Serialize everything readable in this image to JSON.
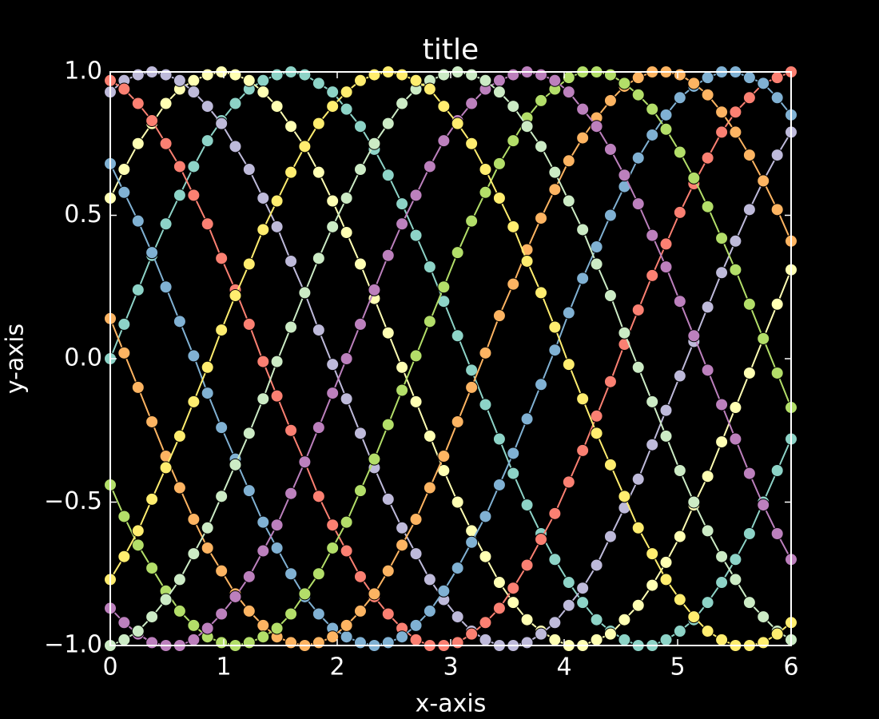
{
  "chart_data": {
    "type": "line",
    "title": "title",
    "x_label": "x-axis",
    "y_label": "y-axis",
    "x": [
      0,
      0.122,
      0.245,
      0.367,
      0.49,
      0.612,
      0.735,
      0.857,
      0.98,
      1.102,
      1.224,
      1.347,
      1.469,
      1.592,
      1.714,
      1.837,
      1.959,
      2.082,
      2.204,
      2.327,
      2.449,
      2.571,
      2.694,
      2.816,
      2.939,
      3.061,
      3.184,
      3.306,
      3.429,
      3.551,
      3.673,
      3.796,
      3.918,
      4.041,
      4.163,
      4.286,
      4.408,
      4.531,
      4.653,
      4.776,
      4.898,
      5.02,
      5.143,
      5.265,
      5.388,
      5.51,
      5.633,
      5.755,
      5.878,
      6
    ],
    "series": [
      {
        "color": "#8dd3c7",
        "values": [
          0,
          0.12,
          0.24,
          0.36,
          0.47,
          0.57,
          0.67,
          0.76,
          0.83,
          0.89,
          0.94,
          0.97,
          0.99,
          1.0,
          0.99,
          0.96,
          0.93,
          0.87,
          0.81,
          0.73,
          0.64,
          0.54,
          0.43,
          0.32,
          0.2,
          0.08,
          -0.04,
          -0.16,
          -0.28,
          -0.4,
          -0.51,
          -0.61,
          -0.7,
          -0.78,
          -0.85,
          -0.91,
          -0.95,
          -0.98,
          -1.0,
          -1.0,
          -0.98,
          -0.95,
          -0.91,
          -0.85,
          -0.78,
          -0.7,
          -0.61,
          -0.5,
          -0.39,
          -0.28
        ]
      },
      {
        "color": "#ffffb3",
        "values": [
          0.56,
          0.66,
          0.75,
          0.82,
          0.89,
          0.94,
          0.97,
          0.99,
          1.0,
          0.99,
          0.97,
          0.93,
          0.88,
          0.81,
          0.74,
          0.65,
          0.55,
          0.44,
          0.33,
          0.21,
          0.09,
          -0.03,
          -0.15,
          -0.27,
          -0.39,
          -0.5,
          -0.6,
          -0.69,
          -0.78,
          -0.85,
          -0.91,
          -0.95,
          -0.98,
          -1.0,
          -1.0,
          -0.98,
          -0.96,
          -0.91,
          -0.86,
          -0.79,
          -0.71,
          -0.62,
          -0.51,
          -0.41,
          -0.29,
          -0.17,
          -0.05,
          0.07,
          0.19,
          0.31
        ]
      },
      {
        "color": "#bebada",
        "values": [
          0.93,
          0.97,
          0.99,
          1.0,
          0.99,
          0.97,
          0.93,
          0.88,
          0.82,
          0.74,
          0.66,
          0.56,
          0.46,
          0.34,
          0.23,
          0.1,
          -0.02,
          -0.14,
          -0.26,
          -0.38,
          -0.49,
          -0.59,
          -0.68,
          -0.77,
          -0.84,
          -0.9,
          -0.95,
          -0.98,
          -1.0,
          -1.0,
          -0.99,
          -0.96,
          -0.92,
          -0.86,
          -0.8,
          -0.72,
          -0.62,
          -0.52,
          -0.42,
          -0.3,
          -0.18,
          -0.06,
          0.06,
          0.18,
          0.3,
          0.41,
          0.52,
          0.62,
          0.71,
          0.79
        ]
      },
      {
        "color": "#fb8072",
        "values": [
          0.97,
          0.94,
          0.89,
          0.83,
          0.75,
          0.67,
          0.57,
          0.47,
          0.35,
          0.24,
          0.12,
          -0.01,
          -0.13,
          -0.25,
          -0.36,
          -0.48,
          -0.58,
          -0.67,
          -0.76,
          -0.83,
          -0.89,
          -0.94,
          -0.98,
          -1.0,
          -1.0,
          -0.99,
          -0.96,
          -0.92,
          -0.87,
          -0.8,
          -0.72,
          -0.63,
          -0.54,
          -0.43,
          -0.32,
          -0.2,
          -0.08,
          0.05,
          0.17,
          0.29,
          0.4,
          0.51,
          0.61,
          0.7,
          0.79,
          0.86,
          0.91,
          0.96,
          0.98,
          1.0
        ]
      },
      {
        "color": "#80b1d3",
        "values": [
          0.68,
          0.58,
          0.48,
          0.37,
          0.25,
          0.13,
          0.01,
          -0.12,
          -0.24,
          -0.35,
          -0.46,
          -0.57,
          -0.66,
          -0.75,
          -0.83,
          -0.89,
          -0.94,
          -0.97,
          -0.99,
          -1.0,
          -0.99,
          -0.97,
          -0.93,
          -0.88,
          -0.81,
          -0.73,
          -0.64,
          -0.55,
          -0.44,
          -0.33,
          -0.21,
          -0.09,
          0.03,
          0.16,
          0.28,
          0.39,
          0.5,
          0.6,
          0.7,
          0.78,
          0.85,
          0.91,
          0.95,
          0.98,
          1.0,
          1.0,
          0.98,
          0.96,
          0.91,
          0.85
        ]
      },
      {
        "color": "#fdb462",
        "values": [
          0.14,
          0.02,
          -0.1,
          -0.22,
          -0.34,
          -0.45,
          -0.56,
          -0.66,
          -0.74,
          -0.82,
          -0.88,
          -0.93,
          -0.97,
          -0.99,
          -1.0,
          -0.99,
          -0.97,
          -0.93,
          -0.88,
          -0.82,
          -0.74,
          -0.65,
          -0.56,
          -0.45,
          -0.34,
          -0.22,
          -0.1,
          0.02,
          0.15,
          0.26,
          0.38,
          0.49,
          0.59,
          0.69,
          0.77,
          0.84,
          0.9,
          0.95,
          0.98,
          1.0,
          1.0,
          0.99,
          0.96,
          0.92,
          0.86,
          0.79,
          0.71,
          0.62,
          0.52,
          0.41
        ]
      },
      {
        "color": "#b3de69",
        "values": [
          -0.44,
          -0.55,
          -0.65,
          -0.73,
          -0.81,
          -0.88,
          -0.93,
          -0.97,
          -0.99,
          -1.0,
          -0.99,
          -0.97,
          -0.94,
          -0.89,
          -0.82,
          -0.75,
          -0.66,
          -0.57,
          -0.46,
          -0.35,
          -0.23,
          -0.11,
          0.01,
          0.13,
          0.25,
          0.37,
          0.48,
          0.58,
          0.68,
          0.76,
          0.84,
          0.9,
          0.94,
          0.98,
          1.0,
          1.0,
          0.99,
          0.96,
          0.92,
          0.87,
          0.8,
          0.72,
          0.63,
          0.53,
          0.42,
          0.31,
          0.19,
          0.07,
          -0.05,
          -0.17
        ]
      },
      {
        "color": "#bc80bd",
        "values": [
          -0.87,
          -0.92,
          -0.96,
          -0.99,
          -1.0,
          -1.0,
          -0.98,
          -0.94,
          -0.89,
          -0.83,
          -0.76,
          -0.67,
          -0.58,
          -0.47,
          -0.36,
          -0.24,
          -0.12,
          0,
          0.12,
          0.24,
          0.36,
          0.47,
          0.57,
          0.67,
          0.76,
          0.83,
          0.89,
          0.94,
          0.97,
          0.99,
          1.0,
          0.99,
          0.97,
          0.93,
          0.87,
          0.81,
          0.73,
          0.64,
          0.54,
          0.43,
          0.32,
          0.2,
          0.08,
          -0.04,
          -0.16,
          -0.28,
          -0.4,
          -0.51,
          -0.61,
          -0.7
        ]
      },
      {
        "color": "#ccebc5",
        "values": [
          -1.0,
          -0.98,
          -0.95,
          -0.9,
          -0.84,
          -0.77,
          -0.68,
          -0.59,
          -0.48,
          -0.37,
          -0.26,
          -0.14,
          -0.01,
          0.11,
          0.23,
          0.35,
          0.46,
          0.56,
          0.66,
          0.75,
          0.82,
          0.89,
          0.94,
          0.97,
          0.99,
          1.0,
          0.99,
          0.97,
          0.93,
          0.88,
          0.81,
          0.74,
          0.65,
          0.55,
          0.45,
          0.33,
          0.22,
          0.09,
          -0.03,
          -0.15,
          -0.27,
          -0.39,
          -0.5,
          -0.6,
          -0.69,
          -0.77,
          -0.85,
          -0.9,
          -0.95,
          -0.98
        ]
      },
      {
        "color": "#ffed6f",
        "values": [
          -0.77,
          -0.69,
          -0.6,
          -0.49,
          -0.38,
          -0.27,
          -0.15,
          -0.03,
          0.1,
          0.22,
          0.33,
          0.45,
          0.55,
          0.65,
          0.74,
          0.82,
          0.88,
          0.93,
          0.97,
          0.99,
          1.0,
          0.99,
          0.97,
          0.94,
          0.88,
          0.82,
          0.75,
          0.66,
          0.56,
          0.46,
          0.34,
          0.23,
          0.11,
          -0.02,
          -0.14,
          -0.26,
          -0.37,
          -0.48,
          -0.59,
          -0.68,
          -0.77,
          -0.84,
          -0.9,
          -0.95,
          -0.98,
          -1.0,
          -1.0,
          -0.99,
          -0.96,
          -0.92
        ]
      }
    ],
    "xlim": [
      0,
      6
    ],
    "xticks": [
      0,
      1,
      2,
      3,
      4,
      5,
      6
    ],
    "ylim": [
      -1,
      1
    ],
    "yticks": [
      {
        "value": -1,
        "label": "−1.0"
      },
      {
        "value": -0.5,
        "label": "−0.5"
      },
      {
        "value": 0,
        "label": "0.0"
      },
      {
        "value": 0.5,
        "label": "0.5"
      },
      {
        "value": 1,
        "label": "1.0"
      }
    ]
  }
}
